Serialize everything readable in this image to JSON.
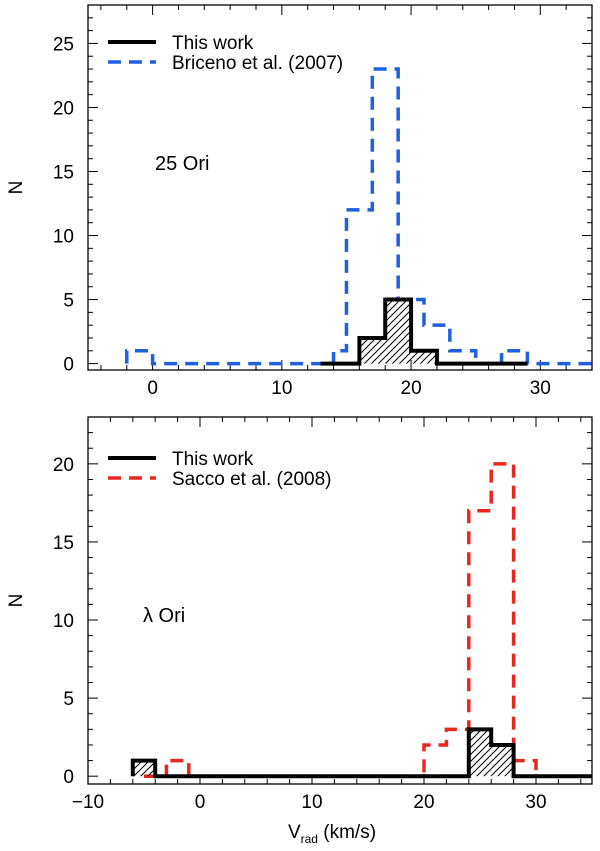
{
  "chart_data": [
    {
      "type": "histogram",
      "panel": "top",
      "xlabel": "",
      "ylabel": "N",
      "xlim": [
        -5,
        34
      ],
      "ylim": [
        -0.5,
        28
      ],
      "xticks": [
        0,
        10,
        20,
        30
      ],
      "yticks": [
        0,
        5,
        10,
        15,
        20,
        25
      ],
      "annotation": "25 Ori",
      "legend_position": "top-left",
      "series": [
        {
          "name": "This work",
          "color": "#000000",
          "style": "solid",
          "hatched": true,
          "bin_edges": [
            13,
            14,
            15,
            16,
            17,
            18,
            19,
            20,
            21,
            22,
            23,
            24,
            25,
            26,
            27,
            28,
            29
          ],
          "counts": [
            0,
            0,
            0,
            2,
            2,
            5,
            5,
            1,
            1,
            0,
            0,
            0,
            0,
            0,
            0,
            0
          ]
        },
        {
          "name": "Briceno et al. (2007)",
          "color": "#1f5fe0",
          "style": "dashed",
          "hatched": false,
          "bin_edges": [
            -2,
            -1,
            0,
            1,
            2,
            3,
            4,
            5,
            6,
            7,
            8,
            9,
            10,
            11,
            12,
            13,
            14,
            15,
            16,
            17,
            18,
            19,
            20,
            21,
            22,
            23,
            24,
            25,
            26,
            27,
            28,
            29,
            30,
            31,
            32,
            33,
            34
          ],
          "counts": [
            1,
            1,
            0,
            0,
            0,
            0,
            0,
            0,
            0,
            0,
            0,
            0,
            0,
            0,
            0,
            0,
            1,
            12,
            12,
            23,
            23,
            5,
            5,
            3,
            3,
            1,
            1,
            0,
            0,
            1,
            1,
            0,
            0,
            0,
            0,
            0
          ]
        }
      ]
    },
    {
      "type": "histogram",
      "panel": "bottom",
      "xlabel": "V",
      "xlabel_sub": "rad",
      "xlabel_unit": " (km/s)",
      "ylabel": "N",
      "xlim": [
        -10,
        35
      ],
      "ylim": [
        -0.5,
        23
      ],
      "xticks": [
        -10,
        0,
        10,
        20,
        30
      ],
      "yticks": [
        0,
        5,
        10,
        15,
        20
      ],
      "annotation": "λ Ori",
      "legend_position": "top-left",
      "series": [
        {
          "name": "This work",
          "color": "#000000",
          "style": "solid",
          "hatched": true,
          "bin_edges": [
            -6,
            -4,
            -2,
            0,
            2,
            4,
            6,
            8,
            10,
            12,
            14,
            16,
            18,
            20,
            22,
            24,
            26,
            28,
            30,
            32,
            34,
            35
          ],
          "counts": [
            1,
            0,
            0,
            0,
            0,
            0,
            0,
            0,
            0,
            0,
            0,
            0,
            0,
            0,
            0,
            3,
            2,
            0,
            0,
            0,
            0
          ]
        },
        {
          "name": "Sacco et al. (2008)",
          "color": "#e8281e",
          "style": "dashed",
          "hatched": false,
          "bin_edges": [
            -5,
            -4,
            -3,
            -2,
            -1,
            0,
            1,
            2,
            3,
            4,
            5,
            6,
            7,
            8,
            9,
            10,
            11,
            12,
            13,
            14,
            15,
            16,
            17,
            18,
            19,
            20,
            21,
            22,
            23,
            24,
            25,
            26,
            27,
            28,
            29,
            30,
            31,
            32,
            33,
            34,
            35
          ],
          "counts": [
            0,
            0,
            1,
            1,
            0,
            0,
            0,
            0,
            0,
            0,
            0,
            0,
            0,
            0,
            0,
            0,
            0,
            0,
            0,
            0,
            0,
            0,
            0,
            0,
            0,
            2,
            2,
            3,
            3,
            17,
            17,
            20,
            20,
            1,
            1,
            0,
            0,
            0,
            0,
            0
          ]
        }
      ]
    }
  ]
}
